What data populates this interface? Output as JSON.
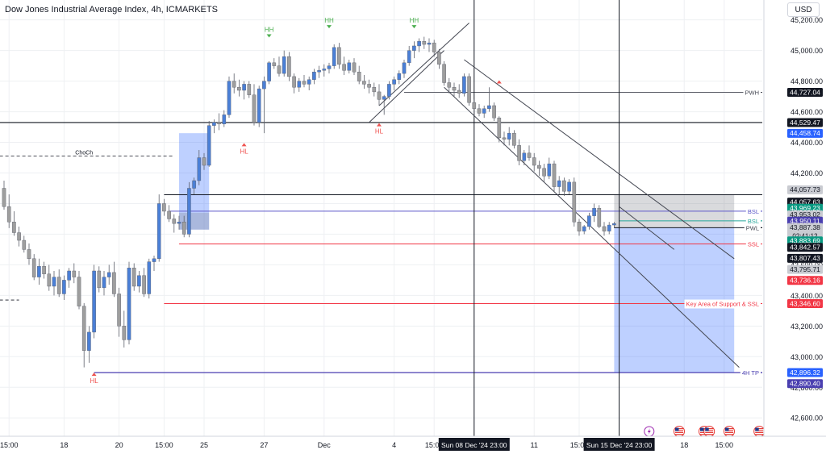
{
  "header": {
    "title": "Dow Jones Industrial Average Index, 4h, ICMARKETS",
    "currency": "USD"
  },
  "colors": {
    "up": "#4a7fd6",
    "down": "#9e9e9e",
    "grid": "#eef0f3",
    "axis_text": "#131722",
    "resistance_zone": "rgba(120,123,134,0.28)",
    "target_zone": "rgba(41,98,255,0.30)"
  },
  "chart_data": {
    "type": "candlestick",
    "title": "Dow Jones Industrial Average Index, 4h, ICMARKETS",
    "ylim": [
      42480,
      45330
    ],
    "y_ticks": [
      42600,
      42800,
      43000,
      43200,
      43400,
      43600,
      43800,
      44000,
      44200,
      44400,
      44600,
      44800,
      45000,
      45200
    ],
    "x_ticks": [
      {
        "label": "15:00",
        "x": 1
      },
      {
        "label": "18",
        "x": 12
      },
      {
        "label": "20",
        "x": 23
      },
      {
        "label": "15:00",
        "x": 32
      },
      {
        "label": "25",
        "x": 40
      },
      {
        "label": "27",
        "x": 52
      },
      {
        "label": "Dec",
        "x": 64
      },
      {
        "label": "4",
        "x": 78
      },
      {
        "label": "15:00",
        "x": 86
      },
      {
        "label": "11",
        "x": 106
      },
      {
        "label": "15:00",
        "x": 115
      },
      {
        "label": "18",
        "x": 136
      },
      {
        "label": "15:00",
        "x": 144
      }
    ],
    "cursor_labels": [
      {
        "label": "Sun 08 Dec '24   23:00",
        "x": 94
      },
      {
        "label": "Sun 15 Dec '24   23:00",
        "x": 123
      }
    ],
    "candles": [
      [
        44100,
        44150,
        43960,
        43980
      ],
      [
        43980,
        44060,
        43840,
        43880
      ],
      [
        43880,
        43950,
        43790,
        43810
      ],
      [
        43810,
        43850,
        43720,
        43760
      ],
      [
        43760,
        43790,
        43680,
        43700
      ],
      [
        43700,
        43740,
        43600,
        43640
      ],
      [
        43640,
        43670,
        43500,
        43520
      ],
      [
        43520,
        43640,
        43470,
        43590
      ],
      [
        43590,
        43620,
        43510,
        43540
      ],
      [
        43540,
        43600,
        43430,
        43460
      ],
      [
        43460,
        43560,
        43400,
        43520
      ],
      [
        43520,
        43570,
        43390,
        43410
      ],
      [
        43410,
        43530,
        43370,
        43500
      ],
      [
        43500,
        43580,
        43450,
        43560
      ],
      [
        43560,
        43610,
        43480,
        43520
      ],
      [
        43520,
        43560,
        43310,
        43330
      ],
      [
        43330,
        43350,
        42930,
        43040
      ],
      [
        43040,
        43200,
        42960,
        43160
      ],
      [
        43160,
        43600,
        43120,
        43560
      ],
      [
        43560,
        43590,
        43420,
        43450
      ],
      [
        43450,
        43560,
        43400,
        43520
      ],
      [
        43520,
        43600,
        43470,
        43550
      ],
      [
        43550,
        43620,
        43390,
        43410
      ],
      [
        43410,
        43450,
        43130,
        43200
      ],
      [
        43200,
        43300,
        43060,
        43110
      ],
      [
        43110,
        43620,
        43080,
        43580
      ],
      [
        43580,
        43610,
        43430,
        43460
      ],
      [
        43460,
        43560,
        43420,
        43530
      ],
      [
        43530,
        43580,
        43390,
        43410
      ],
      [
        43410,
        43640,
        43380,
        43620
      ],
      [
        43620,
        43660,
        43560,
        43640
      ],
      [
        43640,
        44060,
        43620,
        44000
      ],
      [
        44000,
        44030,
        43920,
        43950
      ],
      [
        43950,
        43990,
        43880,
        43900
      ],
      [
        43900,
        43930,
        43810,
        43870
      ],
      [
        43870,
        43920,
        43830,
        43880
      ],
      [
        43880,
        43920,
        43780,
        43800
      ],
      [
        43800,
        44140,
        43780,
        44100
      ],
      [
        44100,
        44170,
        44060,
        44150
      ],
      [
        44150,
        44350,
        44120,
        44300
      ],
      [
        44300,
        44330,
        44220,
        44250
      ],
      [
        44250,
        44540,
        44240,
        44510
      ],
      [
        44510,
        44550,
        44460,
        44530
      ],
      [
        44530,
        44590,
        44480,
        44520
      ],
      [
        44520,
        44610,
        44500,
        44580
      ],
      [
        44580,
        44830,
        44560,
        44800
      ],
      [
        44800,
        44850,
        44720,
        44760
      ],
      [
        44760,
        44810,
        44700,
        44740
      ],
      [
        44740,
        44800,
        44680,
        44780
      ],
      [
        44780,
        44800,
        44690,
        44710
      ],
      [
        44710,
        44780,
        44510,
        44530
      ],
      [
        44530,
        44770,
        44500,
        44750
      ],
      [
        44750,
        44830,
        44460,
        44800
      ],
      [
        44800,
        44930,
        44780,
        44920
      ],
      [
        44920,
        44950,
        44880,
        44900
      ],
      [
        44900,
        44960,
        44830,
        44850
      ],
      [
        44850,
        45000,
        44830,
        44960
      ],
      [
        44960,
        44990,
        44800,
        44830
      ],
      [
        44830,
        44850,
        44720,
        44760
      ],
      [
        44760,
        44820,
        44730,
        44800
      ],
      [
        44800,
        44840,
        44760,
        44780
      ],
      [
        44780,
        44830,
        44740,
        44810
      ],
      [
        44810,
        44880,
        44780,
        44860
      ],
      [
        44860,
        44900,
        44820,
        44870
      ],
      [
        44870,
        44910,
        44830,
        44880
      ],
      [
        44880,
        44920,
        44850,
        44900
      ],
      [
        44900,
        45040,
        44880,
        45020
      ],
      [
        45020,
        45050,
        44880,
        44910
      ],
      [
        44910,
        44960,
        44840,
        44870
      ],
      [
        44870,
        44940,
        44850,
        44920
      ],
      [
        44920,
        44950,
        44840,
        44860
      ],
      [
        44860,
        44900,
        44780,
        44800
      ],
      [
        44800,
        44840,
        44750,
        44780
      ],
      [
        44780,
        44810,
        44720,
        44760
      ],
      [
        44760,
        44790,
        44700,
        44730
      ],
      [
        44730,
        44780,
        44640,
        44680
      ],
      [
        44680,
        44710,
        44580,
        44700
      ],
      [
        44700,
        44800,
        44680,
        44780
      ],
      [
        44780,
        44830,
        44740,
        44810
      ],
      [
        44810,
        44870,
        44780,
        44850
      ],
      [
        44850,
        44940,
        44820,
        44920
      ],
      [
        44920,
        45030,
        44900,
        45000
      ],
      [
        45000,
        45060,
        44950,
        45030
      ],
      [
        45030,
        45080,
        44990,
        45060
      ],
      [
        45060,
        45090,
        45010,
        45040
      ],
      [
        45040,
        45080,
        44990,
        45050
      ],
      [
        45050,
        45070,
        44960,
        44990
      ],
      [
        44990,
        45010,
        44880,
        44910
      ],
      [
        44910,
        44930,
        44770,
        44790
      ],
      [
        44790,
        44820,
        44720,
        44760
      ],
      [
        44760,
        44790,
        44700,
        44740
      ],
      [
        44740,
        44780,
        44690,
        44720
      ],
      [
        44720,
        44850,
        44700,
        44830
      ],
      [
        44830,
        44850,
        44640,
        44660
      ],
      [
        44660,
        44680,
        44580,
        44620
      ],
      [
        44620,
        44650,
        44570,
        44590
      ],
      [
        44590,
        44640,
        44560,
        44620
      ],
      [
        44620,
        44760,
        44600,
        44640
      ],
      [
        44640,
        44660,
        44540,
        44560
      ],
      [
        44560,
        44570,
        44400,
        44430
      ],
      [
        44430,
        44470,
        44380,
        44420
      ],
      [
        44420,
        44500,
        44380,
        44460
      ],
      [
        44460,
        44480,
        44360,
        44380
      ],
      [
        44380,
        44420,
        44250,
        44280
      ],
      [
        44280,
        44350,
        44250,
        44330
      ],
      [
        44330,
        44380,
        44280,
        44300
      ],
      [
        44300,
        44330,
        44210,
        44250
      ],
      [
        44250,
        44280,
        44180,
        44230
      ],
      [
        44230,
        44260,
        44140,
        44180
      ],
      [
        44180,
        44300,
        44160,
        44260
      ],
      [
        44260,
        44280,
        44080,
        44110
      ],
      [
        44110,
        44180,
        44060,
        44150
      ],
      [
        44150,
        44170,
        44050,
        44080
      ],
      [
        44080,
        44160,
        44060,
        44140
      ],
      [
        44140,
        44170,
        43850,
        43880
      ],
      [
        43880,
        43900,
        43790,
        43820
      ],
      [
        43820,
        43860,
        43800,
        43850
      ],
      [
        43850,
        43940,
        43830,
        43920
      ],
      [
        43920,
        44000,
        43880,
        43970
      ],
      [
        43970,
        43990,
        43840,
        43850
      ],
      [
        43850,
        43880,
        43790,
        43820
      ],
      [
        43820,
        43880,
        43800,
        43860
      ],
      [
        43860,
        43880,
        43840,
        43870
      ]
    ],
    "horizontal_lines": [
      {
        "price": 44727.04,
        "label": "PWH",
        "x_start": 80,
        "color": "#434651",
        "width": 0.8
      },
      {
        "price": 44529.47,
        "label": "",
        "x_start": -2,
        "color": "#131722",
        "width": 1.2
      },
      {
        "price": 44057.63,
        "label": "",
        "x_start": 32,
        "color": "#131722",
        "width": 1
      },
      {
        "price": 43950.11,
        "label": "BSL",
        "x_start": 33,
        "color": "#5b57c9",
        "width": 1
      },
      {
        "price": 43887.38,
        "label": "BSL",
        "x_start": 123,
        "color": "#26a69a",
        "width": 1
      },
      {
        "price": 43842.57,
        "label": "PWL",
        "x_start": 122,
        "color": "#131722",
        "width": 1
      },
      {
        "price": 43736.16,
        "label": "SSL",
        "x_start": 35,
        "color": "#f23645",
        "width": 1
      },
      {
        "price": 43346.6,
        "label": "Key Area of Support & SSL",
        "x_start": 32,
        "color": "#f23645",
        "width": 1
      },
      {
        "price": 42896.32,
        "label": "4H TP",
        "x_start": 18,
        "color": "#4a3fb0",
        "width": 1.2
      }
    ],
    "dashed_levels": [
      {
        "price": 44310,
        "label": "ChoCh",
        "x_start": -2,
        "x_end": 34
      },
      {
        "price": 43370,
        "label": "",
        "x_start": -2,
        "x_end": 3
      }
    ],
    "zones": [
      {
        "x_start": 35,
        "x_end": 41,
        "y_low": 43830,
        "y_high": 44460,
        "kind": "blue"
      },
      {
        "x_start": 35,
        "x_end": 41,
        "y_low": 43830,
        "y_high": 43940,
        "kind": "gray"
      },
      {
        "x_start": 122,
        "x_end": 146,
        "y_low": 43842.57,
        "y_high": 44057.63,
        "kind": "gray"
      },
      {
        "x_start": 122,
        "x_end": 146,
        "y_low": 42896.32,
        "y_high": 43842.57,
        "kind": "blue"
      }
    ],
    "trendlines": [
      {
        "x1": 75,
        "y1": 44640,
        "x2": 93,
        "y2": 45180
      },
      {
        "x1": 88,
        "y1": 44760,
        "x2": 147,
        "y2": 42930
      },
      {
        "x1": 92,
        "y1": 44940,
        "x2": 146,
        "y2": 43640
      },
      {
        "x1": 73,
        "y1": 44530,
        "x2": 88,
        "y2": 45000
      },
      {
        "x1": 123,
        "y1": 43980,
        "x2": 134,
        "y2": 43700
      }
    ],
    "vertical_lines": [
      94,
      123
    ],
    "annotations": [
      {
        "label": "HH",
        "x": 53,
        "price": 45090,
        "color": "#4caf50",
        "arrow": "down"
      },
      {
        "label": "HH",
        "x": 65,
        "price": 45150,
        "color": "#4caf50",
        "arrow": "down"
      },
      {
        "label": "HH",
        "x": 82,
        "price": 45150,
        "color": "#4caf50",
        "arrow": "down"
      },
      {
        "label": "HL",
        "x": 48,
        "price": 44380,
        "color": "#ef5350",
        "arrow": "up"
      },
      {
        "label": "HL",
        "x": 75,
        "price": 44510,
        "color": "#ef5350",
        "arrow": "up"
      },
      {
        "label": "HL",
        "x": 18,
        "price": 42880,
        "color": "#ef5350",
        "arrow": "up"
      },
      {
        "label": "",
        "x": 99,
        "price": 44790,
        "color": "#ef5350",
        "arrow": "up"
      }
    ],
    "price_labels": [
      {
        "text": "44,727.04",
        "price": 44727.04,
        "bg": "#131722",
        "fg": "#ffffff"
      },
      {
        "text": "44,529.47",
        "price": 44529.47,
        "bg": "#131722",
        "fg": "#ffffff"
      },
      {
        "text": "44,458.74",
        "price": 44458.74,
        "bg": "#2962ff",
        "fg": "#ffffff"
      },
      {
        "text": "44,057.73",
        "price": 44090,
        "bg": "#c9cbd1",
        "fg": "#131722"
      },
      {
        "text": "44,057.63",
        "price": 44010,
        "bg": "#131722",
        "fg": "#ffffff"
      },
      {
        "text": "43,969.23",
        "price": 43969.23,
        "bg": "#089981",
        "fg": "#ffffff"
      },
      {
        "text": "43,953.02",
        "price": 43927,
        "bg": "#c9cbd1",
        "fg": "#131722"
      },
      {
        "text": "43,950.11",
        "price": 43885,
        "bg": "#4a3fb0",
        "fg": "#ffffff"
      },
      {
        "text": "43,887.38",
        "price": 43843,
        "bg": "#c9cbd1",
        "fg": "#131722",
        "sub": "02:41:12",
        "height": 22
      },
      {
        "text": "43,883.69",
        "price": 43756,
        "bg": "#089981",
        "fg": "#ffffff"
      },
      {
        "text": "43,842.57",
        "price": 43714,
        "bg": "#131722",
        "fg": "#ffffff"
      },
      {
        "text": "43,807.43",
        "price": 43642,
        "bg": "#131722",
        "fg": "#ffffff"
      },
      {
        "text": "43,795.71",
        "price": 43570,
        "bg": "#c9cbd1",
        "fg": "#131722"
      },
      {
        "text": "43,736.16",
        "price": 43498,
        "bg": "#f23645",
        "fg": "#ffffff"
      },
      {
        "text": "43,346.60",
        "price": 43346.6,
        "bg": "#f23645",
        "fg": "#ffffff"
      },
      {
        "text": "42,896.32",
        "price": 42896.32,
        "bg": "#2962ff",
        "fg": "#ffffff"
      },
      {
        "text": "42,890.40",
        "price": 42824,
        "bg": "#4a3fb0",
        "fg": "#ffffff"
      }
    ],
    "event_icons": [
      {
        "x": 129,
        "kind": "flash"
      },
      {
        "x": 135,
        "kind": "us-flag"
      },
      {
        "x": 140,
        "kind": "us-flag"
      },
      {
        "x": 141,
        "kind": "us-flag"
      },
      {
        "x": 145,
        "kind": "us-flag"
      },
      {
        "x": 151,
        "kind": "us-flag"
      }
    ]
  }
}
